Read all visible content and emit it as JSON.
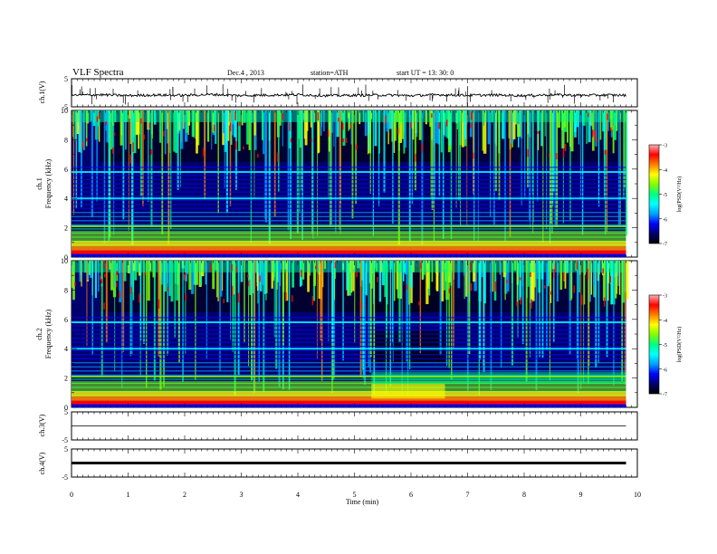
{
  "header": {
    "title": "VLF  Spectra",
    "date": "Dec.4  , 2013",
    "station": "station=ATH",
    "start": "start  UT  =   13: 30: 0"
  },
  "colors": {
    "spectrum": [
      "#000000",
      "#00006e",
      "#0000ff",
      "#00a0ff",
      "#00ffff",
      "#00ff80",
      "#80ff00",
      "#ffff00",
      "#ff8000",
      "#ff0000",
      "#ffb0b0"
    ],
    "waveform": "#000000",
    "background": "#ffffff"
  },
  "chart_data": [
    {
      "type": "line",
      "name": "ch1-waveform",
      "ylabel": "ch.1(V)",
      "ylim": [
        -5,
        5
      ],
      "yticks": [
        "5",
        "-5"
      ],
      "x": [
        0,
        0.5,
        1,
        1.5,
        2,
        2.5,
        3,
        3.5,
        4,
        4.5,
        5,
        5.5,
        6,
        6.5,
        7,
        7.5,
        8,
        8.5,
        9,
        9.5,
        9.8
      ],
      "y": [
        -0.9,
        -0.7,
        -1.0,
        -0.8,
        -0.9,
        -0.6,
        -1.0,
        -0.8,
        -0.7,
        -1.0,
        -0.9,
        -0.8,
        -1.0,
        -0.7,
        -0.9,
        -0.8,
        -1.0,
        -0.7,
        -0.9,
        -0.8,
        -0.9
      ]
    },
    {
      "type": "heatmap",
      "name": "ch1-spectrogram",
      "ylabel": "ch.1\nFrequency (kHz)",
      "ylim": [
        0,
        10
      ],
      "yticks": [
        "0",
        "2",
        "4",
        "6",
        "8",
        "10"
      ],
      "colorbar": {
        "label": "log(PSD(V²/Hz)",
        "range": [
          -7,
          -3
        ],
        "ticks": [
          "-3",
          "-4",
          "-5",
          "-6",
          "-7"
        ]
      }
    },
    {
      "type": "heatmap",
      "name": "ch2-spectrogram",
      "ylabel": "ch.2\nFrequency (kHz)",
      "ylim": [
        0,
        10
      ],
      "yticks": [
        "0",
        "2",
        "4",
        "6",
        "8",
        "10"
      ],
      "colorbar": {
        "label": "log(PSD(V²/Hz)",
        "range": [
          -7,
          -3
        ],
        "ticks": [
          "-3",
          "-4",
          "-5",
          "-6",
          "-7"
        ]
      }
    },
    {
      "type": "line",
      "name": "ch3-waveform",
      "ylabel": "ch.3(V)",
      "ylim": [
        -5,
        5
      ],
      "yticks": [
        "5",
        "-5"
      ],
      "x": [
        0,
        9.8
      ],
      "y": [
        0,
        0
      ]
    },
    {
      "type": "line",
      "name": "ch4-waveform",
      "ylabel": "ch.4(V)",
      "ylim": [
        -5,
        5
      ],
      "yticks": [
        "5",
        "-5"
      ],
      "x": [
        0,
        9.8
      ],
      "y": [
        0,
        0
      ]
    }
  ],
  "xaxis": {
    "label": "Time  (min)",
    "xlim": [
      0,
      10
    ],
    "ticks": [
      "0",
      "1",
      "2",
      "3",
      "4",
      "5",
      "6",
      "7",
      "8",
      "9",
      "10"
    ]
  }
}
